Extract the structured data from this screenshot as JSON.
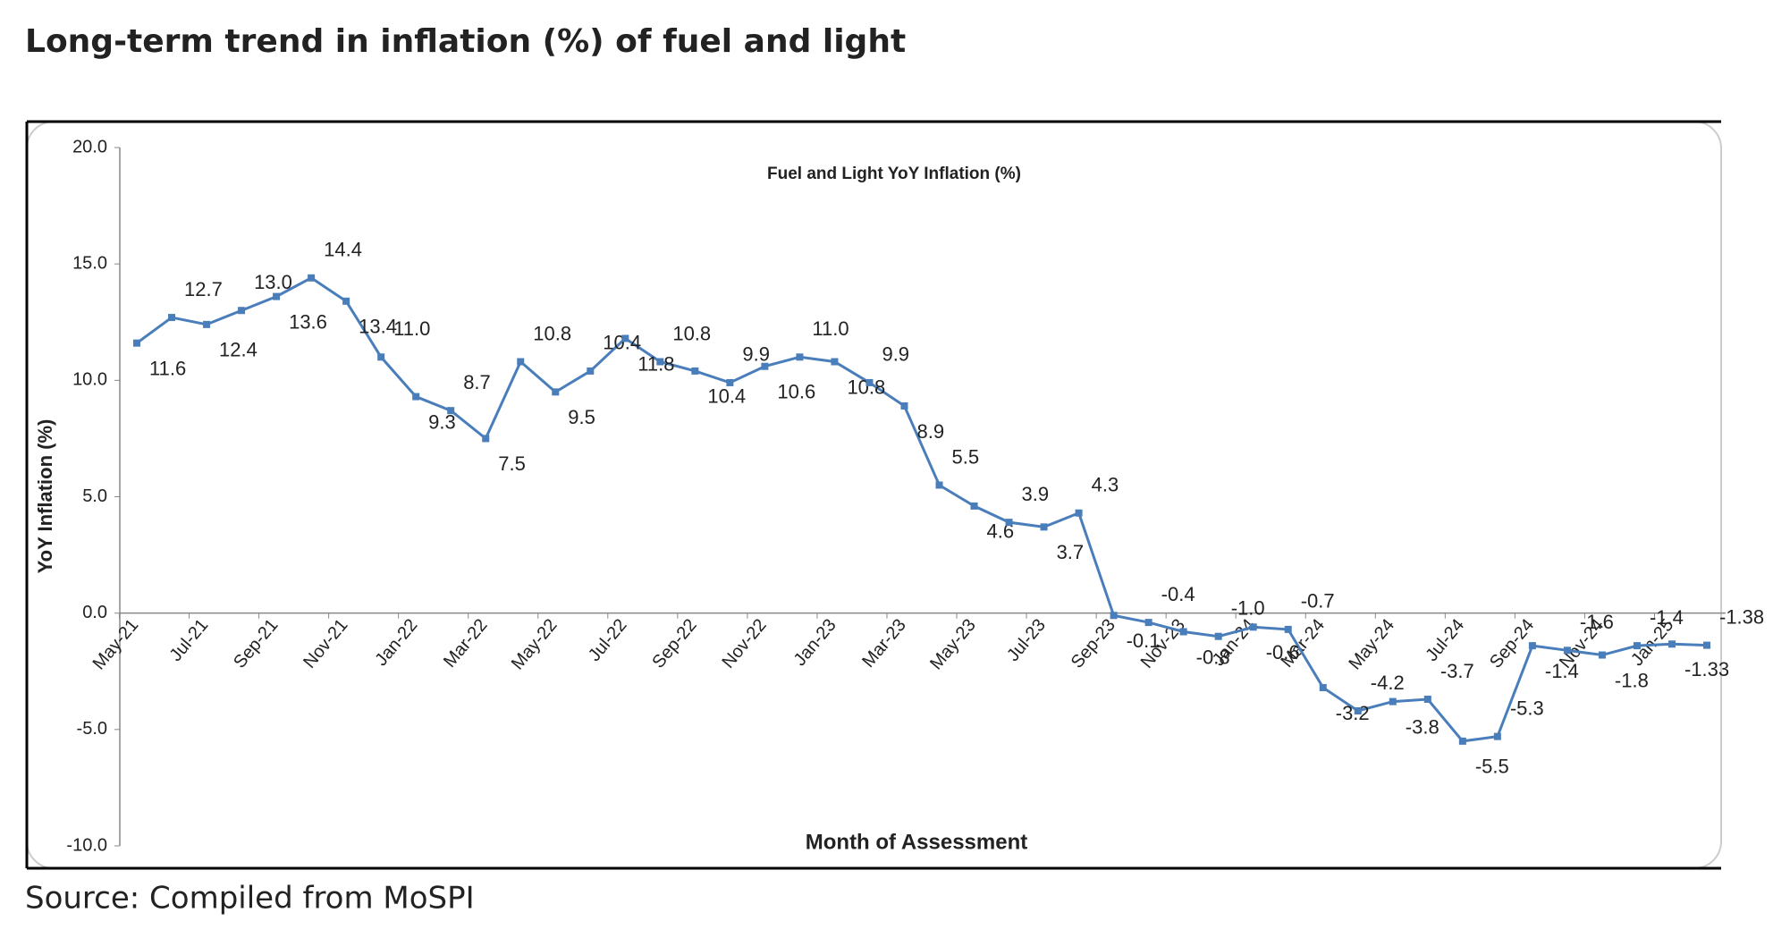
{
  "page": {
    "heading": "Long-term trend in inflation (%) of fuel and light",
    "source": "Source: Compiled from MoSPI"
  },
  "chart_data": {
    "type": "line",
    "title": "Fuel and Light YoY Inflation (%)",
    "x_label": "Month of Assessment",
    "y_label": "YoY Inflation (%)",
    "categories": [
      "May-21",
      null,
      "Jul-21",
      null,
      "Sep-21",
      null,
      "Nov-21",
      null,
      "Jan-22",
      null,
      "Mar-22",
      null,
      "May-22",
      null,
      "Jul-22",
      null,
      "Sep-22",
      null,
      "Nov-22",
      null,
      "Jan-23",
      null,
      "Mar-23",
      null,
      "May-23",
      null,
      "Jul-23",
      null,
      "Sep-23",
      null,
      "Nov-23",
      null,
      "Jan-24",
      null,
      "Mar-24",
      null,
      "May-24",
      null,
      "Jul-24",
      null,
      "Sep-24",
      null,
      "Nov-24",
      null,
      "Jan-25",
      null
    ],
    "series": [
      {
        "name": "Fuel and Light YoY Inflation (%)",
        "color": "#4a7ebb",
        "values": [
          11.6,
          12.7,
          12.4,
          13.0,
          13.6,
          14.4,
          13.4,
          11.0,
          9.3,
          8.7,
          7.5,
          10.8,
          9.5,
          10.4,
          11.8,
          10.8,
          10.4,
          9.9,
          10.6,
          11.0,
          10.8,
          9.9,
          8.9,
          5.5,
          4.6,
          3.9,
          3.7,
          4.3,
          -0.1,
          -0.4,
          -0.8,
          -1.0,
          -0.6,
          -0.7,
          -3.2,
          -4.2,
          -3.8,
          -3.7,
          -5.5,
          -5.3,
          -1.4,
          -1.6,
          -1.8,
          -1.4,
          -1.33,
          -1.38
        ],
        "value_labels": [
          "11.6",
          "12.7",
          "12.4",
          "13.0",
          "13.6",
          "14.4",
          "13.4",
          "11.0",
          "9.3",
          "8.7",
          "7.5",
          "10.8",
          "9.5",
          "10.4",
          "11.8",
          "10.8",
          "10.4",
          "9.9",
          "10.6",
          "11.0",
          "10.8",
          "9.9",
          "8.9",
          "5.5",
          "4.6",
          "3.9",
          "3.7",
          "4.3",
          "-0.1",
          "-0.4",
          "-0.8",
          "-1.0",
          "-0.6",
          "-0.7",
          "-3.2",
          "-4.2",
          "-3.8",
          "-3.7",
          "-5.5",
          "-5.3",
          "-1.4",
          "-1.6",
          "-1.8",
          "-1.4",
          "-1.33",
          "-1.38"
        ]
      }
    ],
    "ylim": [
      -10,
      20
    ],
    "yticks": [
      {
        "value": -10,
        "label": "-10.0"
      },
      {
        "value": -5,
        "label": "-5.0"
      },
      {
        "value": 0,
        "label": "0.0"
      },
      {
        "value": 5,
        "label": "5.0"
      },
      {
        "value": 10,
        "label": "10.0"
      },
      {
        "value": 15,
        "label": "15.0"
      },
      {
        "value": 20,
        "label": "20.0"
      }
    ],
    "grid": false
  }
}
